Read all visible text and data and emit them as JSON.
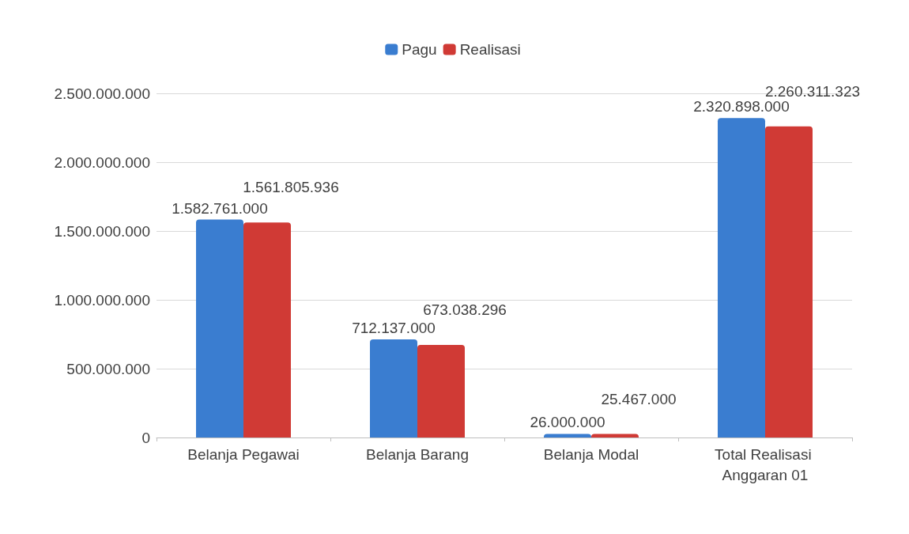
{
  "chart_data": {
    "type": "bar",
    "categories": [
      "Belanja Pegawai",
      "Belanja Barang",
      "Belanja Modal",
      "Total Realisasi Anggaran 01"
    ],
    "series": [
      {
        "name": "Pagu",
        "color": "#3a7dd0",
        "values": [
          1582761000,
          712137000,
          26000000,
          2320898000
        ],
        "value_labels": [
          "1.582.761.000",
          "712.137.000",
          "26.000.000",
          "2.320.898.000"
        ]
      },
      {
        "name": "Realisasi",
        "color": "#d03a35",
        "values": [
          1561805936,
          673038296,
          25467000,
          2260311323
        ],
        "value_labels": [
          "1.561.805.936",
          "673.038.296",
          "25.467.000",
          "2.260.311.323"
        ]
      }
    ],
    "ylim": [
      0,
      2500000000
    ],
    "yticks": [
      0,
      {
        "value": 500000000,
        "label": "500.000.000"
      },
      {
        "value": 1000000000,
        "label": "1.000.000.000"
      },
      {
        "value": 1500000000,
        "label": "1.500.000.000"
      },
      {
        "value": 2000000000,
        "label": "2.000.000.000"
      },
      {
        "value": 2500000000,
        "label": "2.500.000.000"
      }
    ],
    "grid": "y",
    "legend": "top"
  }
}
